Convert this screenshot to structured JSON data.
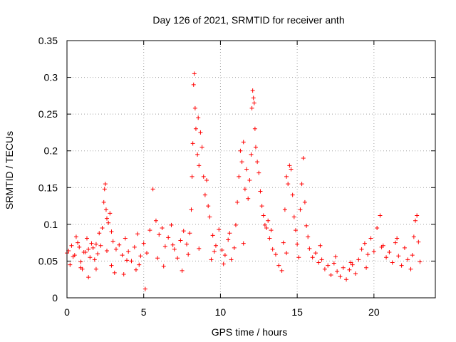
{
  "chart_data": {
    "type": "scatter",
    "title": "Day 126 of 2021, SRMTID for receiver anth",
    "xlabel": "GPS time / hours",
    "ylabel": "SRMTID / TECUs",
    "xlim": [
      0,
      24
    ],
    "ylim": [
      0,
      0.35
    ],
    "xticks": [
      0,
      5,
      10,
      15,
      20
    ],
    "xtick_labels": [
      "0",
      "5",
      "10",
      "15",
      "20"
    ],
    "yticks": [
      0,
      0.05,
      0.1,
      0.15,
      0.2,
      0.25,
      0.3,
      0.35
    ],
    "ytick_labels": [
      "0",
      "0.05",
      "0.1",
      "0.15",
      "0.2",
      "0.25",
      "0.3",
      "0.35"
    ],
    "grid": true,
    "marker": "plus",
    "color": "#ff0000",
    "series": [
      {
        "name": "SRMTID",
        "points": [
          [
            0.1,
            0.064
          ],
          [
            0.3,
            0.071
          ],
          [
            0.5,
            0.058
          ],
          [
            0.7,
            0.075
          ],
          [
            0.9,
            0.049
          ],
          [
            1.1,
            0.062
          ],
          [
            1.3,
            0.081
          ],
          [
            1.5,
            0.055
          ],
          [
            1.7,
            0.068
          ],
          [
            1.9,
            0.073
          ],
          [
            0.2,
            0.045
          ],
          [
            0.6,
            0.083
          ],
          [
            1.0,
            0.039
          ],
          [
            1.4,
            0.066
          ],
          [
            1.8,
            0.052
          ],
          [
            2.0,
            0.06
          ],
          [
            2.1,
            0.088
          ],
          [
            2.2,
            0.071
          ],
          [
            2.3,
            0.095
          ],
          [
            2.4,
            0.13
          ],
          [
            2.45,
            0.148
          ],
          [
            2.5,
            0.155
          ],
          [
            2.55,
            0.12
          ],
          [
            2.6,
            0.108
          ],
          [
            2.7,
            0.102
          ],
          [
            2.8,
            0.115
          ],
          [
            2.9,
            0.09
          ],
          [
            3.0,
            0.077
          ],
          [
            3.2,
            0.066
          ],
          [
            3.4,
            0.072
          ],
          [
            3.6,
            0.058
          ],
          [
            3.8,
            0.081
          ],
          [
            4.0,
            0.063
          ],
          [
            4.2,
            0.05
          ],
          [
            4.4,
            0.069
          ],
          [
            4.6,
            0.087
          ],
          [
            4.8,
            0.057
          ],
          [
            5.0,
            0.074
          ],
          [
            5.2,
            0.061
          ],
          [
            5.1,
            0.012
          ],
          [
            1.4,
            0.028
          ],
          [
            3.1,
            0.034
          ],
          [
            4.5,
            0.038
          ],
          [
            5.4,
            0.092
          ],
          [
            5.6,
            0.148
          ],
          [
            5.8,
            0.105
          ],
          [
            6.0,
            0.086
          ],
          [
            6.2,
            0.095
          ],
          [
            6.4,
            0.07
          ],
          [
            6.6,
            0.082
          ],
          [
            6.8,
            0.099
          ],
          [
            7.0,
            0.066
          ],
          [
            7.2,
            0.054
          ],
          [
            7.4,
            0.078
          ],
          [
            7.6,
            0.091
          ],
          [
            7.8,
            0.073
          ],
          [
            8.0,
            0.088
          ],
          [
            8.1,
            0.12
          ],
          [
            8.15,
            0.165
          ],
          [
            8.2,
            0.21
          ],
          [
            8.25,
            0.29
          ],
          [
            8.3,
            0.305
          ],
          [
            8.35,
            0.258
          ],
          [
            8.4,
            0.23
          ],
          [
            8.5,
            0.195
          ],
          [
            8.55,
            0.245
          ],
          [
            8.6,
            0.18
          ],
          [
            8.7,
            0.225
          ],
          [
            8.8,
            0.205
          ],
          [
            8.9,
            0.165
          ],
          [
            9.0,
            0.14
          ],
          [
            9.1,
            0.16
          ],
          [
            9.2,
            0.125
          ],
          [
            9.3,
            0.11
          ],
          [
            9.5,
            0.085
          ],
          [
            9.7,
            0.071
          ],
          [
            9.9,
            0.093
          ],
          [
            10.1,
            0.065
          ],
          [
            10.3,
            0.058
          ],
          [
            10.5,
            0.079
          ],
          [
            10.7,
            0.052
          ],
          [
            10.9,
            0.068
          ],
          [
            11.0,
            0.099
          ],
          [
            11.1,
            0.13
          ],
          [
            11.2,
            0.165
          ],
          [
            11.3,
            0.2
          ],
          [
            11.4,
            0.185
          ],
          [
            11.5,
            0.212
          ],
          [
            11.6,
            0.148
          ],
          [
            11.7,
            0.175
          ],
          [
            11.8,
            0.135
          ],
          [
            11.9,
            0.16
          ],
          [
            12.0,
            0.195
          ],
          [
            12.05,
            0.258
          ],
          [
            12.1,
            0.282
          ],
          [
            12.15,
            0.272
          ],
          [
            12.2,
            0.265
          ],
          [
            12.25,
            0.23
          ],
          [
            12.3,
            0.205
          ],
          [
            12.4,
            0.185
          ],
          [
            12.5,
            0.17
          ],
          [
            12.6,
            0.145
          ],
          [
            12.7,
            0.125
          ],
          [
            12.8,
            0.112
          ],
          [
            13.0,
            0.095
          ],
          [
            13.2,
            0.081
          ],
          [
            13.4,
            0.066
          ],
          [
            13.6,
            0.059
          ],
          [
            13.8,
            0.044
          ],
          [
            14.0,
            0.037
          ],
          [
            14.1,
            0.075
          ],
          [
            14.2,
            0.12
          ],
          [
            14.3,
            0.165
          ],
          [
            14.4,
            0.155
          ],
          [
            14.5,
            0.18
          ],
          [
            14.6,
            0.175
          ],
          [
            14.7,
            0.14
          ],
          [
            14.8,
            0.11
          ],
          [
            14.9,
            0.092
          ],
          [
            15.0,
            0.073
          ],
          [
            15.1,
            0.055
          ],
          [
            15.2,
            0.12
          ],
          [
            15.3,
            0.155
          ],
          [
            15.4,
            0.19
          ],
          [
            15.5,
            0.13
          ],
          [
            15.6,
            0.098
          ],
          [
            15.8,
            0.067
          ],
          [
            16.0,
            0.055
          ],
          [
            16.2,
            0.061
          ],
          [
            16.4,
            0.048
          ],
          [
            16.6,
            0.052
          ],
          [
            16.8,
            0.039
          ],
          [
            17.0,
            0.044
          ],
          [
            17.2,
            0.031
          ],
          [
            17.4,
            0.047
          ],
          [
            17.6,
            0.036
          ],
          [
            17.8,
            0.029
          ],
          [
            18.0,
            0.041
          ],
          [
            18.2,
            0.025
          ],
          [
            18.4,
            0.038
          ],
          [
            18.6,
            0.045
          ],
          [
            18.8,
            0.033
          ],
          [
            19.0,
            0.052
          ],
          [
            19.2,
            0.066
          ],
          [
            19.4,
            0.074
          ],
          [
            19.6,
            0.059
          ],
          [
            19.8,
            0.081
          ],
          [
            20.0,
            0.063
          ],
          [
            20.2,
            0.095
          ],
          [
            20.4,
            0.112
          ],
          [
            20.6,
            0.071
          ],
          [
            20.8,
            0.055
          ],
          [
            21.0,
            0.062
          ],
          [
            21.2,
            0.048
          ],
          [
            21.4,
            0.075
          ],
          [
            21.6,
            0.057
          ],
          [
            21.8,
            0.044
          ],
          [
            22.0,
            0.068
          ],
          [
            22.2,
            0.052
          ],
          [
            22.4,
            0.039
          ],
          [
            22.6,
            0.083
          ],
          [
            22.7,
            0.105
          ],
          [
            22.8,
            0.112
          ],
          [
            22.9,
            0.076
          ],
          [
            23.0,
            0.049
          ],
          [
            13.1,
            0.105
          ],
          [
            13.3,
            0.092
          ],
          [
            9.6,
            0.063
          ],
          [
            10.2,
            0.046
          ],
          [
            7.5,
            0.037
          ],
          [
            6.3,
            0.043
          ],
          [
            3.9,
            0.051
          ],
          [
            2.6,
            0.064
          ],
          [
            0.4,
            0.056
          ],
          [
            0.8,
            0.069
          ],
          [
            1.2,
            0.062
          ],
          [
            1.6,
            0.074
          ],
          [
            17.5,
            0.056
          ],
          [
            18.5,
            0.048
          ],
          [
            19.5,
            0.041
          ],
          [
            20.5,
            0.069
          ],
          [
            21.5,
            0.081
          ],
          [
            22.5,
            0.058
          ],
          [
            16.5,
            0.071
          ],
          [
            15.7,
            0.083
          ],
          [
            14.3,
            0.061
          ],
          [
            12.9,
            0.099
          ],
          [
            11.5,
            0.074
          ],
          [
            10.6,
            0.088
          ],
          [
            9.4,
            0.052
          ],
          [
            8.6,
            0.067
          ],
          [
            7.9,
            0.059
          ],
          [
            6.9,
            0.072
          ],
          [
            5.9,
            0.054
          ],
          [
            4.7,
            0.045
          ],
          [
            3.7,
            0.032
          ],
          [
            2.9,
            0.044
          ],
          [
            1.9,
            0.039
          ],
          [
            0.9,
            0.041
          ],
          [
            0.0,
            0.061
          ]
        ]
      }
    ]
  }
}
